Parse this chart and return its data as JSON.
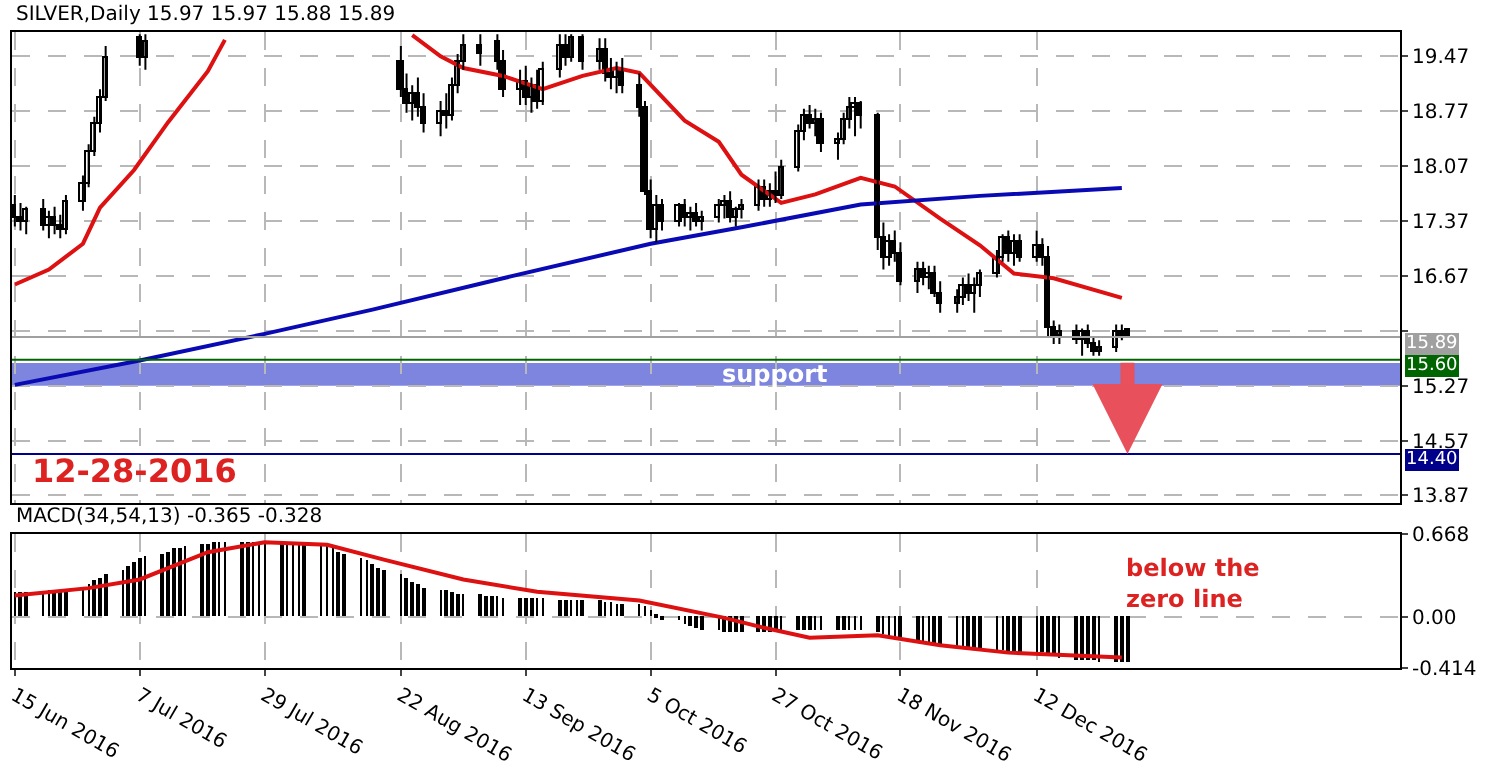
{
  "chart_data": [
    {
      "type": "candlestick",
      "title": "SILVER,Daily 15.97 15.97 15.88 15.89",
      "color": "#000000",
      "x": [
        "2016-06-15",
        "2016-06-16",
        "2016-06-17",
        "2016-06-20",
        "2016-06-21",
        "2016-06-22",
        "2016-06-23",
        "2016-06-24",
        "2016-06-27",
        "2016-06-28",
        "2016-06-29",
        "2016-06-30",
        "2016-07-01",
        "2016-07-07",
        "2016-07-08",
        "2016-08-22",
        "2016-08-23",
        "2016-08-24",
        "2016-08-25",
        "2016-08-26",
        "2016-08-29",
        "2016-08-30",
        "2016-08-31",
        "2016-09-01",
        "2016-09-02",
        "2016-09-05",
        "2016-09-08",
        "2016-09-09",
        "2016-09-12",
        "2016-09-13",
        "2016-09-14",
        "2016-09-15",
        "2016-09-16",
        "2016-09-19",
        "2016-09-20",
        "2016-09-21",
        "2016-09-23",
        "2016-09-26",
        "2016-09-27",
        "2016-09-28",
        "2016-09-29",
        "2016-09-30",
        "2016-10-03",
        "2016-10-04",
        "2016-10-05",
        "2016-10-06",
        "2016-10-07",
        "2016-10-10",
        "2016-10-11",
        "2016-10-12",
        "2016-10-13",
        "2016-10-14",
        "2016-10-17",
        "2016-10-18",
        "2016-10-19",
        "2016-10-20",
        "2016-10-21",
        "2016-10-24",
        "2016-10-25",
        "2016-10-26",
        "2016-10-27",
        "2016-10-28",
        "2016-10-31",
        "2016-11-01",
        "2016-11-02",
        "2016-11-03",
        "2016-11-04",
        "2016-11-07",
        "2016-11-08",
        "2016-11-09",
        "2016-11-10",
        "2016-11-11",
        "2016-11-14",
        "2016-11-15",
        "2016-11-16",
        "2016-11-17",
        "2016-11-18",
        "2016-11-21",
        "2016-11-22",
        "2016-11-23",
        "2016-11-24",
        "2016-11-25",
        "2016-11-28",
        "2016-11-29",
        "2016-11-30",
        "2016-12-01",
        "2016-12-02",
        "2016-12-05",
        "2016-12-06",
        "2016-12-07",
        "2016-12-08",
        "2016-12-09",
        "2016-12-12",
        "2016-12-13",
        "2016-12-14",
        "2016-12-15",
        "2016-12-16",
        "2016-12-19",
        "2016-12-20",
        "2016-12-21",
        "2016-12-22",
        "2016-12-23",
        "2016-12-26",
        "2016-12-27",
        "2016-12-28"
      ],
      "ohlc": [
        [
          17.55,
          17.7,
          17.3,
          17.4
        ],
        [
          17.4,
          17.6,
          17.25,
          17.35
        ],
        [
          17.35,
          17.55,
          17.2,
          17.5
        ],
        [
          17.5,
          17.65,
          17.25,
          17.3
        ],
        [
          17.3,
          17.5,
          17.15,
          17.4
        ],
        [
          17.4,
          17.55,
          17.2,
          17.3
        ],
        [
          17.3,
          17.45,
          17.15,
          17.25
        ],
        [
          17.25,
          17.7,
          17.2,
          17.6
        ],
        [
          17.6,
          17.95,
          17.5,
          17.85
        ],
        [
          17.85,
          18.35,
          17.8,
          18.25
        ],
        [
          18.25,
          18.7,
          18.2,
          18.6
        ],
        [
          18.6,
          19.05,
          18.5,
          18.95
        ],
        [
          18.95,
          19.6,
          18.9,
          19.45
        ],
        [
          19.7,
          19.75,
          19.35,
          19.45
        ],
        [
          19.45,
          19.75,
          19.3,
          19.65
        ],
        [
          19.4,
          19.6,
          18.95,
          19.05
        ],
        [
          19.05,
          19.25,
          18.75,
          18.85
        ],
        [
          18.85,
          19.1,
          18.65,
          19.0
        ],
        [
          19.0,
          19.2,
          18.7,
          18.8
        ],
        [
          18.8,
          19.0,
          18.5,
          18.6
        ],
        [
          18.6,
          18.9,
          18.45,
          18.75
        ],
        [
          18.75,
          19.0,
          18.55,
          18.7
        ],
        [
          18.7,
          19.2,
          18.65,
          19.1
        ],
        [
          19.1,
          19.5,
          19.0,
          19.4
        ],
        [
          19.4,
          19.75,
          19.3,
          19.6
        ],
        [
          19.6,
          19.75,
          19.35,
          19.5
        ],
        [
          19.65,
          19.75,
          19.3,
          19.4
        ],
        [
          19.4,
          19.55,
          18.95,
          19.05
        ],
        [
          19.05,
          19.3,
          18.85,
          19.15
        ],
        [
          19.15,
          19.35,
          18.85,
          18.95
        ],
        [
          18.95,
          19.2,
          18.75,
          19.1
        ],
        [
          19.1,
          19.3,
          18.8,
          18.9
        ],
        [
          18.9,
          19.4,
          18.85,
          19.3
        ],
        [
          19.3,
          19.75,
          19.2,
          19.6
        ],
        [
          19.6,
          19.75,
          19.35,
          19.45
        ],
        [
          19.45,
          19.75,
          19.4,
          19.7
        ],
        [
          19.7,
          19.75,
          19.3,
          19.4
        ],
        [
          19.4,
          19.7,
          19.3,
          19.55
        ],
        [
          19.55,
          19.7,
          19.15,
          19.25
        ],
        [
          19.25,
          19.45,
          19.05,
          19.2
        ],
        [
          19.2,
          19.4,
          19.0,
          19.3
        ],
        [
          19.3,
          19.45,
          19.0,
          19.1
        ],
        [
          19.1,
          19.25,
          18.7,
          18.8
        ],
        [
          18.8,
          18.9,
          17.7,
          17.75
        ],
        [
          17.75,
          17.9,
          17.15,
          17.25
        ],
        [
          17.25,
          17.7,
          17.1,
          17.55
        ],
        [
          17.55,
          17.65,
          17.25,
          17.35
        ],
        [
          17.35,
          17.6,
          17.3,
          17.55
        ],
        [
          17.55,
          17.65,
          17.3,
          17.4
        ],
        [
          17.4,
          17.55,
          17.25,
          17.45
        ],
        [
          17.45,
          17.6,
          17.3,
          17.35
        ],
        [
          17.35,
          17.5,
          17.25,
          17.4
        ],
        [
          17.4,
          17.65,
          17.35,
          17.55
        ],
        [
          17.55,
          17.7,
          17.4,
          17.6
        ],
        [
          17.6,
          17.75,
          17.35,
          17.4
        ],
        [
          17.4,
          17.55,
          17.3,
          17.5
        ],
        [
          17.5,
          17.65,
          17.4,
          17.55
        ],
        [
          17.55,
          17.9,
          17.5,
          17.8
        ],
        [
          17.8,
          17.9,
          17.55,
          17.65
        ],
        [
          17.65,
          17.85,
          17.55,
          17.75
        ],
        [
          17.75,
          18.0,
          17.6,
          17.7
        ],
        [
          17.7,
          18.15,
          17.65,
          18.05
        ],
        [
          18.05,
          18.6,
          18.0,
          18.5
        ],
        [
          18.5,
          18.8,
          18.4,
          18.7
        ],
        [
          18.7,
          18.85,
          18.55,
          18.6
        ],
        [
          18.6,
          18.8,
          18.45,
          18.65
        ],
        [
          18.65,
          18.75,
          18.25,
          18.35
        ],
        [
          18.35,
          18.5,
          18.15,
          18.4
        ],
        [
          18.4,
          18.75,
          18.35,
          18.65
        ],
        [
          18.65,
          18.95,
          18.55,
          18.8
        ],
        [
          18.8,
          18.95,
          18.45,
          18.85
        ],
        [
          18.85,
          18.9,
          18.55,
          18.7
        ],
        [
          18.7,
          18.75,
          17.0,
          17.15
        ],
        [
          17.15,
          17.35,
          16.75,
          16.9
        ],
        [
          16.9,
          17.2,
          16.8,
          17.1
        ],
        [
          17.1,
          17.25,
          16.85,
          16.95
        ],
        [
          16.95,
          17.1,
          16.55,
          16.6
        ],
        [
          16.6,
          16.85,
          16.45,
          16.75
        ],
        [
          16.75,
          16.85,
          16.55,
          16.65
        ],
        [
          16.65,
          16.8,
          16.5,
          16.7
        ],
        [
          16.7,
          16.8,
          16.4,
          16.45
        ],
        [
          16.45,
          16.6,
          16.2,
          16.3
        ],
        [
          16.3,
          16.5,
          16.2,
          16.4
        ],
        [
          16.4,
          16.65,
          16.3,
          16.55
        ],
        [
          16.55,
          16.7,
          16.35,
          16.45
        ],
        [
          16.45,
          16.65,
          16.2,
          16.55
        ],
        [
          16.55,
          16.75,
          16.4,
          16.7
        ],
        [
          16.7,
          17.0,
          16.65,
          16.9
        ],
        [
          16.9,
          17.2,
          16.85,
          17.15
        ],
        [
          17.15,
          17.25,
          16.85,
          16.95
        ],
        [
          16.95,
          17.2,
          16.8,
          17.1
        ],
        [
          17.1,
          17.2,
          16.85,
          16.9
        ],
        [
          16.9,
          17.25,
          16.85,
          17.05
        ],
        [
          17.05,
          17.15,
          16.8,
          16.9
        ],
        [
          16.9,
          17.05,
          15.9,
          16.0
        ],
        [
          16.0,
          16.1,
          15.8,
          15.9
        ],
        [
          15.9,
          16.05,
          15.8,
          15.95
        ],
        [
          15.95,
          16.05,
          15.8,
          15.85
        ],
        [
          15.85,
          16.0,
          15.65,
          15.95
        ],
        [
          15.95,
          16.05,
          15.75,
          15.8
        ],
        [
          15.8,
          15.9,
          15.65,
          15.7
        ],
        [
          15.7,
          15.85,
          15.65,
          15.75
        ],
        [
          15.75,
          16.05,
          15.7,
          15.95
        ],
        [
          15.95,
          16.05,
          15.85,
          15.9
        ],
        [
          15.97,
          15.97,
          15.88,
          15.89
        ]
      ],
      "series": [
        {
          "type": "line",
          "color": "#dd1111",
          "x": [
            "2016-06-15",
            "2016-06-21",
            "2016-06-27",
            "2016-06-30",
            "2016-07-06",
            "2016-07-12",
            "2016-07-19",
            "2016-07-22",
            "2016-08-08",
            "2016-08-24",
            "2016-08-29",
            "2016-09-02",
            "2016-09-09",
            "2016-09-16",
            "2016-09-23",
            "2016-09-29",
            "2016-10-03",
            "2016-10-11",
            "2016-10-17",
            "2016-10-21",
            "2016-10-28",
            "2016-11-03",
            "2016-11-11",
            "2016-11-17",
            "2016-11-25",
            "2016-12-02",
            "2016-12-08",
            "2016-12-15",
            "2016-12-27"
          ],
          "values": [
            16.56,
            16.75,
            17.08,
            17.54,
            18.02,
            18.63,
            19.28,
            19.68,
            null,
            19.74,
            19.47,
            19.32,
            19.22,
            19.05,
            19.22,
            19.32,
            19.26,
            18.65,
            18.38,
            17.96,
            17.6,
            17.71,
            17.92,
            17.81,
            17.4,
            17.06,
            16.7,
            16.64,
            16.39
          ]
        },
        {
          "type": "line",
          "color": "#0a0ab4",
          "x": [
            "2016-06-15",
            "2016-07-07",
            "2016-07-29",
            "2016-08-17",
            "2016-09-09",
            "2016-10-05",
            "2016-10-21",
            "2016-11-11",
            "2016-12-02",
            "2016-12-27"
          ],
          "values": [
            15.28,
            15.59,
            15.93,
            16.24,
            16.64,
            17.08,
            17.29,
            17.58,
            17.69,
            17.79
          ]
        }
      ],
      "xlim": [
        "2016-06-14T12:00",
        "2017-02-14"
      ],
      "ylim": [
        13.77,
        19.78
      ],
      "yticks": [
        19.47,
        18.77,
        18.07,
        17.37,
        16.67,
        {
          "value": 15.97,
          "label": null
        },
        15.27,
        14.57,
        13.87
      ],
      "ref_lines": [
        {
          "axis": "y",
          "value": 15.89,
          "label": "15.89",
          "color": "#a0a0a0"
        },
        {
          "axis": "y",
          "value": 15.6,
          "label": "15.60",
          "color": "#006400"
        },
        {
          "axis": "y",
          "value": 14.4,
          "label": "14.40",
          "color": "#00008b"
        }
      ],
      "bands": [
        {
          "axis": "y",
          "from": 15.27,
          "to": 15.56,
          "label": "support",
          "color": "#6670d8"
        }
      ],
      "annotations": [
        "12-28-2016"
      ],
      "grid": true,
      "tick_labels": "y"
    },
    {
      "type": "bar",
      "title": "MACD(34,54,13) -0.365 -0.328",
      "color": "#000000",
      "x": [
        "2016-06-15",
        "2016-06-16",
        "2016-06-17",
        "2016-06-20",
        "2016-06-21",
        "2016-06-22",
        "2016-06-23",
        "2016-06-24",
        "2016-06-27",
        "2016-06-28",
        "2016-06-29",
        "2016-06-30",
        "2016-07-01",
        "2016-07-04",
        "2016-07-05",
        "2016-07-06",
        "2016-07-07",
        "2016-07-08",
        "2016-07-11",
        "2016-07-12",
        "2016-07-13",
        "2016-07-14",
        "2016-07-15",
        "2016-07-18",
        "2016-07-19",
        "2016-07-20",
        "2016-07-21",
        "2016-07-22",
        "2016-07-25",
        "2016-07-26",
        "2016-07-27",
        "2016-07-28",
        "2016-07-29",
        "2016-08-01",
        "2016-08-02",
        "2016-08-03",
        "2016-08-04",
        "2016-08-05",
        "2016-08-08",
        "2016-08-09",
        "2016-08-10",
        "2016-08-11",
        "2016-08-12",
        "2016-08-15",
        "2016-08-16",
        "2016-08-17",
        "2016-08-18",
        "2016-08-19",
        "2016-08-22",
        "2016-08-23",
        "2016-08-24",
        "2016-08-25",
        "2016-08-26",
        "2016-08-29",
        "2016-08-30",
        "2016-08-31",
        "2016-09-01",
        "2016-09-02",
        "2016-09-05",
        "2016-09-06",
        "2016-09-07",
        "2016-09-08",
        "2016-09-09",
        "2016-09-12",
        "2016-09-13",
        "2016-09-14",
        "2016-09-15",
        "2016-09-16",
        "2016-09-19",
        "2016-09-20",
        "2016-09-21",
        "2016-09-22",
        "2016-09-23",
        "2016-09-26",
        "2016-09-27",
        "2016-09-28",
        "2016-09-29",
        "2016-09-30",
        "2016-10-03",
        "2016-10-04",
        "2016-10-05",
        "2016-10-06",
        "2016-10-07",
        "2016-10-10",
        "2016-10-11",
        "2016-10-12",
        "2016-10-13",
        "2016-10-14",
        "2016-10-17",
        "2016-10-18",
        "2016-10-19",
        "2016-10-20",
        "2016-10-21",
        "2016-10-24",
        "2016-10-25",
        "2016-10-26",
        "2016-10-27",
        "2016-10-28",
        "2016-10-31",
        "2016-11-01",
        "2016-11-02",
        "2016-11-03",
        "2016-11-04",
        "2016-11-07",
        "2016-11-08",
        "2016-11-09",
        "2016-11-10",
        "2016-11-11",
        "2016-11-14",
        "2016-11-15",
        "2016-11-16",
        "2016-11-17",
        "2016-11-18",
        "2016-11-21",
        "2016-11-22",
        "2016-11-23",
        "2016-11-24",
        "2016-11-25",
        "2016-11-28",
        "2016-11-29",
        "2016-11-30",
        "2016-12-01",
        "2016-12-02",
        "2016-12-05",
        "2016-12-06",
        "2016-12-07",
        "2016-12-08",
        "2016-12-09",
        "2016-12-12",
        "2016-12-13",
        "2016-12-14",
        "2016-12-15",
        "2016-12-16",
        "2016-12-19",
        "2016-12-20",
        "2016-12-21",
        "2016-12-22",
        "2016-12-23",
        "2016-12-26",
        "2016-12-27",
        "2016-12-28"
      ],
      "values": [
        0.2,
        0.2,
        0.2,
        0.2,
        0.21,
        0.21,
        0.21,
        0.22,
        0.24,
        0.26,
        0.29,
        0.32,
        0.35,
        0.38,
        0.41,
        0.44,
        0.47,
        0.49,
        0.51,
        0.53,
        0.55,
        0.56,
        0.57,
        0.58,
        0.59,
        0.6,
        0.6,
        0.61,
        0.61,
        0.61,
        0.61,
        0.61,
        0.61,
        0.61,
        0.6,
        0.6,
        0.6,
        0.59,
        0.58,
        0.57,
        0.55,
        0.53,
        0.51,
        0.48,
        0.46,
        0.43,
        0.4,
        0.37,
        0.34,
        0.31,
        0.28,
        0.26,
        0.24,
        0.22,
        0.21,
        0.2,
        0.19,
        0.18,
        0.18,
        0.17,
        0.17,
        0.17,
        0.16,
        0.16,
        0.16,
        0.15,
        0.15,
        0.15,
        0.14,
        0.14,
        0.14,
        0.13,
        0.13,
        0.13,
        0.12,
        0.12,
        0.11,
        0.11,
        0.1,
        0.08,
        0.05,
        0.02,
        -0.01,
        -0.03,
        -0.05,
        -0.07,
        -0.09,
        -0.1,
        -0.11,
        -0.12,
        -0.13,
        -0.13,
        -0.13,
        -0.12,
        -0.12,
        -0.12,
        -0.12,
        -0.12,
        -0.11,
        -0.11,
        -0.11,
        -0.11,
        -0.11,
        -0.11,
        -0.11,
        -0.11,
        -0.11,
        -0.11,
        -0.12,
        -0.14,
        -0.16,
        -0.17,
        -0.18,
        -0.19,
        -0.2,
        -0.21,
        -0.22,
        -0.23,
        -0.24,
        -0.25,
        -0.26,
        -0.26,
        -0.27,
        -0.27,
        -0.27,
        -0.28,
        -0.28,
        -0.28,
        -0.29,
        -0.29,
        -0.31,
        -0.32,
        -0.33,
        -0.34,
        -0.34,
        -0.35,
        -0.35,
        -0.36,
        -0.36,
        -0.36,
        -0.36
      ],
      "series": [
        {
          "type": "line",
          "color": "#dd1111",
          "x": [
            "2016-06-15",
            "2016-06-28",
            "2016-07-07",
            "2016-07-19",
            "2016-07-29",
            "2016-08-09",
            "2016-08-19",
            "2016-09-02",
            "2016-09-15",
            "2016-10-03",
            "2016-10-18",
            "2016-10-25",
            "2016-11-02",
            "2016-11-14",
            "2016-11-25",
            "2016-12-07",
            "2016-12-27"
          ],
          "values": [
            0.17,
            0.23,
            0.3,
            0.52,
            0.6,
            0.58,
            0.46,
            0.3,
            0.2,
            0.13,
            -0.01,
            -0.09,
            -0.17,
            -0.15,
            -0.23,
            -0.29,
            -0.33
          ]
        }
      ],
      "xlim": [
        "2016-06-14T12:00",
        "2017-02-14"
      ],
      "xticks": [
        {
          "value": "2016-06-15",
          "label": "15 Jun 2016"
        },
        {
          "value": "2016-07-07",
          "label": "7 Jul 2016"
        },
        {
          "value": "2016-07-29",
          "label": "29 Jul 2016"
        },
        {
          "value": "2016-08-22",
          "label": "22 Aug 2016"
        },
        {
          "value": "2016-09-13",
          "label": "13 Sep 2016"
        },
        {
          "value": "2016-10-05",
          "label": "5 Oct 2016"
        },
        {
          "value": "2016-10-27",
          "label": "27 Oct 2016"
        },
        {
          "value": "2016-11-18",
          "label": "18 Nov 2016"
        },
        {
          "value": "2016-12-12",
          "label": "12 Dec 2016"
        }
      ],
      "ylim": [
        -0.414,
        0.668
      ],
      "yticks": [
        0.668,
        {
          "value": 0,
          "label": "0.00"
        },
        -0.414
      ],
      "annotations": [
        "below the zero line"
      ],
      "grid": true
    }
  ]
}
